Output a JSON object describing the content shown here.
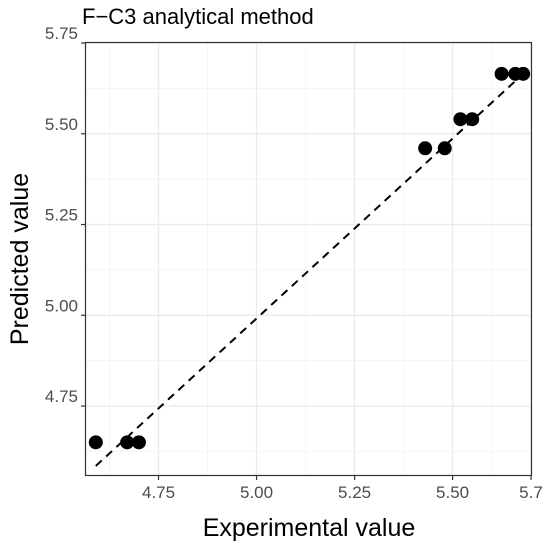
{
  "chart_data": {
    "type": "scatter",
    "title": "F−C3 analytical method",
    "xlabel": "Experimental value",
    "ylabel": "Predicted value",
    "xlim": [
      4.565,
      5.7
    ],
    "ylim": [
      4.56,
      5.75
    ],
    "xticks": [
      4.75,
      5.0,
      5.25,
      5.5,
      5.7
    ],
    "xtick_labels": [
      "4.75",
      "5.00",
      "5.25",
      "5.50",
      "5.7"
    ],
    "yticks": [
      4.75,
      5.0,
      5.25,
      5.5,
      5.75
    ],
    "ytick_labels": [
      "4.75",
      "5.00",
      "5.25",
      "5.50",
      "5.75"
    ],
    "grid": true,
    "series": [
      {
        "kind": "points",
        "x": [
          4.59,
          4.67,
          4.7,
          5.43,
          5.48,
          5.52,
          5.55,
          5.625,
          5.66,
          5.68
        ],
        "y": [
          4.65,
          4.65,
          4.65,
          5.46,
          5.46,
          5.54,
          5.54,
          5.665,
          5.665,
          5.665
        ],
        "color": "#000000"
      },
      {
        "kind": "reference-line",
        "style": "dashed",
        "x": [
          4.59,
          5.68
        ],
        "y": [
          4.585,
          5.665
        ],
        "color": "#000000"
      }
    ],
    "colors": {
      "panel_border": "#333333",
      "grid_major": "#ebebeb",
      "grid_minor": "#f5f5f5",
      "tick_text": "#4d4d4d",
      "axis_title": "#000000"
    }
  }
}
